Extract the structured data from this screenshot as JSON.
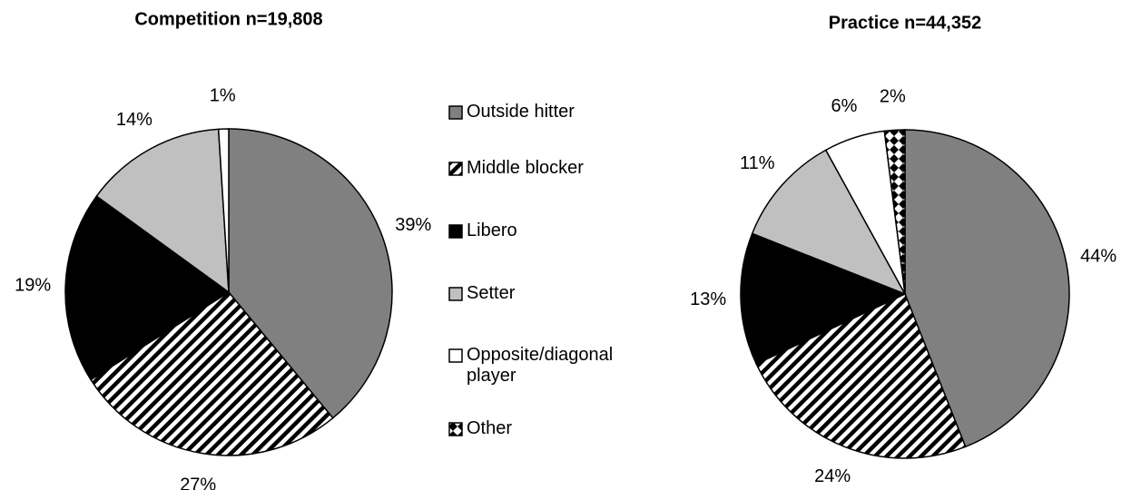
{
  "chart_data": [
    {
      "type": "pie",
      "title": "Competition n=19,808",
      "categories": [
        "Outside hitter",
        "Middle blocker",
        "Libero",
        "Setter",
        "Opposite/diagonal player"
      ],
      "values": [
        39,
        27,
        19,
        14,
        1
      ],
      "value_labels": [
        "39%",
        "27%",
        "19%",
        "14%",
        "1%"
      ],
      "fills": [
        "#808080",
        "hatch",
        "#000000",
        "#c0c0c0",
        "#ffffff"
      ]
    },
    {
      "type": "pie",
      "title": "Practice n=44,352",
      "categories": [
        "Outside hitter",
        "Middle blocker",
        "Libero",
        "Setter",
        "Opposite/diagonal player",
        "Other"
      ],
      "values": [
        44,
        24,
        13,
        11,
        6,
        2
      ],
      "value_labels": [
        "44%",
        "24%",
        "13%",
        "11%",
        "6%",
        "2%"
      ],
      "fills": [
        "#808080",
        "hatch",
        "#000000",
        "#c0c0c0",
        "#ffffff",
        "diamond"
      ]
    }
  ]
}
